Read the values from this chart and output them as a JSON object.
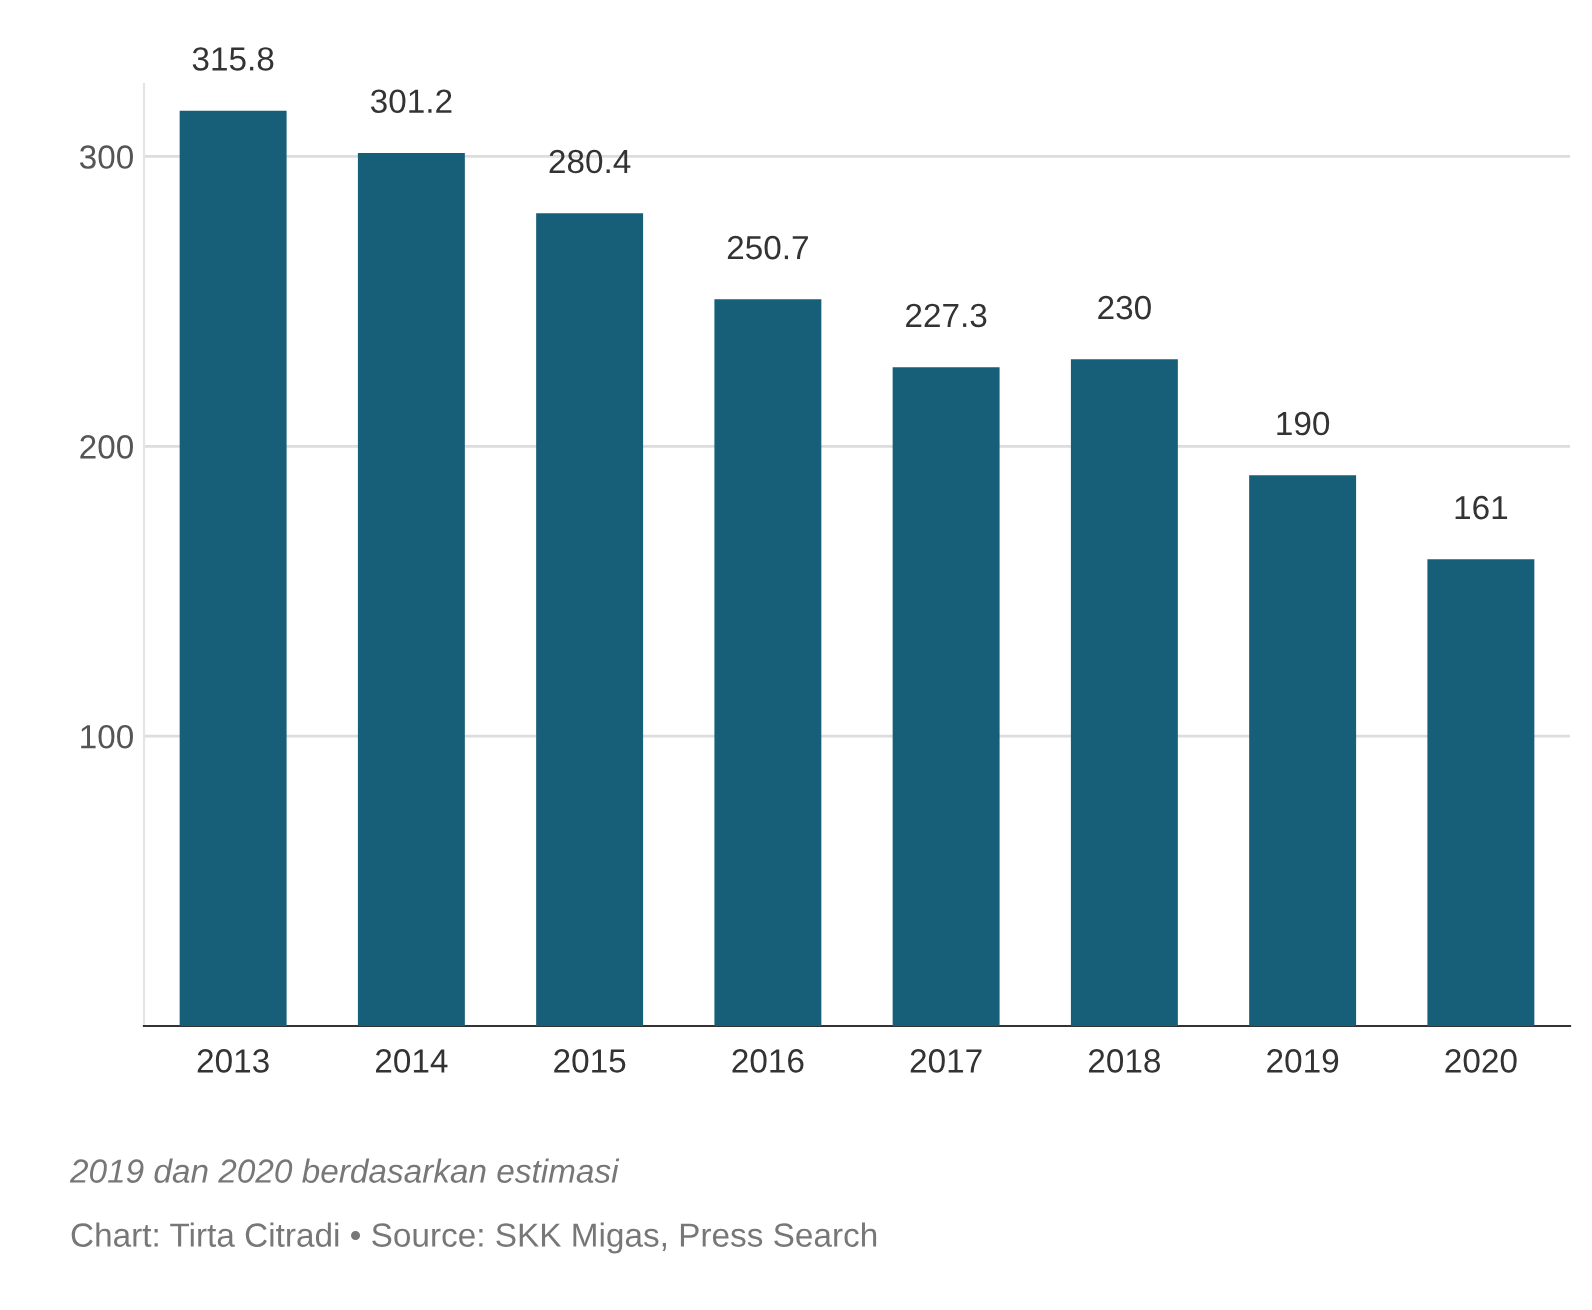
{
  "chart_data": {
    "type": "bar",
    "categories": [
      "2013",
      "2014",
      "2015",
      "2016",
      "2017",
      "2018",
      "2019",
      "2020"
    ],
    "values": [
      315.8,
      301.2,
      280.4,
      250.7,
      227.3,
      230,
      190,
      161
    ],
    "color": "#175e78",
    "ylim": [
      0,
      325
    ],
    "yticks": [
      100,
      200,
      300
    ],
    "grid": "y",
    "data_labels": true,
    "annotations": [
      "2019 dan 2020 berdasarkan estimasi",
      "Chart: Tirta Citradi • Source: SKK Migas, Press Search"
    ]
  }
}
